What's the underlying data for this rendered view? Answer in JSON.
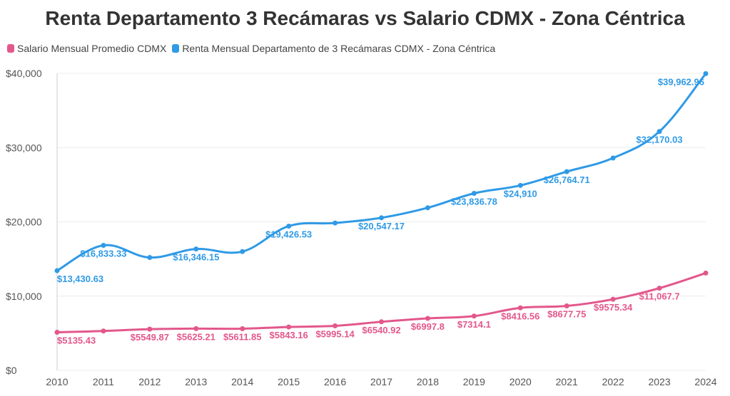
{
  "chart_data": {
    "type": "line",
    "title": "Renta Departamento 3 Recámaras vs Salario CDMX - Zona Céntrica",
    "xlabel": "",
    "ylabel": "",
    "x": [
      "2010",
      "2011",
      "2012",
      "2013",
      "2014",
      "2015",
      "2016",
      "2017",
      "2018",
      "2019",
      "2020",
      "2021",
      "2022",
      "2023",
      "2024"
    ],
    "ylim": [
      0,
      40000
    ],
    "yticks": [
      0,
      10000,
      20000,
      30000,
      40000
    ],
    "ytick_labels": [
      "$0",
      "$10,000",
      "$20,000",
      "$30,000",
      "$40,000"
    ],
    "grid": true,
    "legend_position": "top-left",
    "series": [
      {
        "name": "Salario Mensual Promedio CDMX",
        "color": "#e3578b",
        "values": [
          5135.43,
          5300,
          5549.87,
          5625.21,
          5611.85,
          5843.16,
          5995.14,
          6540.92,
          6997.8,
          7314.1,
          8416.56,
          8677.75,
          9575.34,
          11067.7,
          13100
        ],
        "labels": [
          "$5135.43",
          "",
          "$5549.87",
          "$5625.21",
          "$5611.85",
          "$5843.16",
          "$5995.14",
          "$6540.92",
          "$6997.8",
          "$7314.1",
          "$8416.56",
          "$8677.75",
          "$9575.34",
          "$11,067.7",
          ""
        ]
      },
      {
        "name": "Renta Mensual Departamento de 3 Recámaras CDMX - Zona Céntrica",
        "color": "#2f9ae6",
        "values": [
          13430.63,
          16833.33,
          15200,
          16346.15,
          16000,
          19426.53,
          19850,
          20547.17,
          21900,
          23836.78,
          24910,
          26764.71,
          28600,
          32170.03,
          39962.96
        ],
        "labels": [
          "$13,430.63",
          "$16,833.33",
          "",
          "$16,346.15",
          "",
          "$19,426.53",
          "",
          "$20,547.17",
          "",
          "$23,836.78",
          "$24,910",
          "$26,764.71",
          "",
          "$32,170.03",
          "$39,962.96"
        ]
      }
    ]
  }
}
